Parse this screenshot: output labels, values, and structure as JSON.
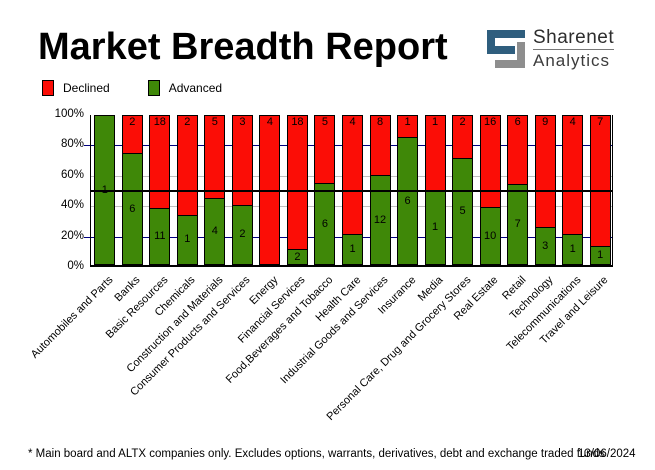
{
  "header": {
    "title": "Market Breadth Report",
    "logo": {
      "line1": "Sharenet",
      "line2": "Analytics",
      "blue": "#2f5e7e",
      "gray": "#8e8e8e"
    }
  },
  "legend": {
    "declined_label": "Declined",
    "advanced_label": "Advanced"
  },
  "chart_data": {
    "type": "bar",
    "stacked": "100-percent",
    "title": "Market Breadth Report",
    "categories": [
      "Automobiles and Parts",
      "Banks",
      "Basic Resources",
      "Chemicals",
      "Construction and Materials",
      "Consumer Products and Services",
      "Energy",
      "Financial Services",
      "Food,Beverages and Tobacco",
      "Health Care",
      "Industrial Goods and Services",
      "Insurance",
      "Media",
      "Personal Care, Drug and Grocery Stores",
      "Real Estate",
      "Retail",
      "Technology",
      "Telecommunications",
      "Travel and Leisure"
    ],
    "series": [
      {
        "name": "Declined",
        "color": "#fb0d06",
        "values": [
          0,
          2,
          18,
          2,
          5,
          3,
          4,
          18,
          5,
          4,
          8,
          1,
          1,
          2,
          16,
          6,
          9,
          4,
          7
        ]
      },
      {
        "name": "Advanced",
        "color": "#3f8808",
        "values": [
          1,
          6,
          11,
          1,
          4,
          2,
          0,
          2,
          6,
          1,
          12,
          6,
          1,
          5,
          10,
          7,
          3,
          1,
          1
        ]
      }
    ],
    "y_axis": {
      "min": 0,
      "max": 100,
      "unit": "percent",
      "ticks": [
        "100%",
        "80%",
        "60%",
        "40%",
        "20%",
        "0%"
      ]
    },
    "gridlines": [
      {
        "pct": 80,
        "color": "#000080"
      },
      {
        "pct": 60,
        "color": "#c0c0c0"
      },
      {
        "pct": 40,
        "color": "#c0c0c0"
      },
      {
        "pct": 20,
        "color": "#000080"
      }
    ],
    "reference_line_pct": 50,
    "legend_position": "top-left",
    "xlabel": "",
    "ylabel": ""
  },
  "footer": {
    "note": "* Main board and ALTX companies only. Excludes options, warrants, derivatives, debt and exchange traded funds",
    "date": "13/06/2024"
  }
}
